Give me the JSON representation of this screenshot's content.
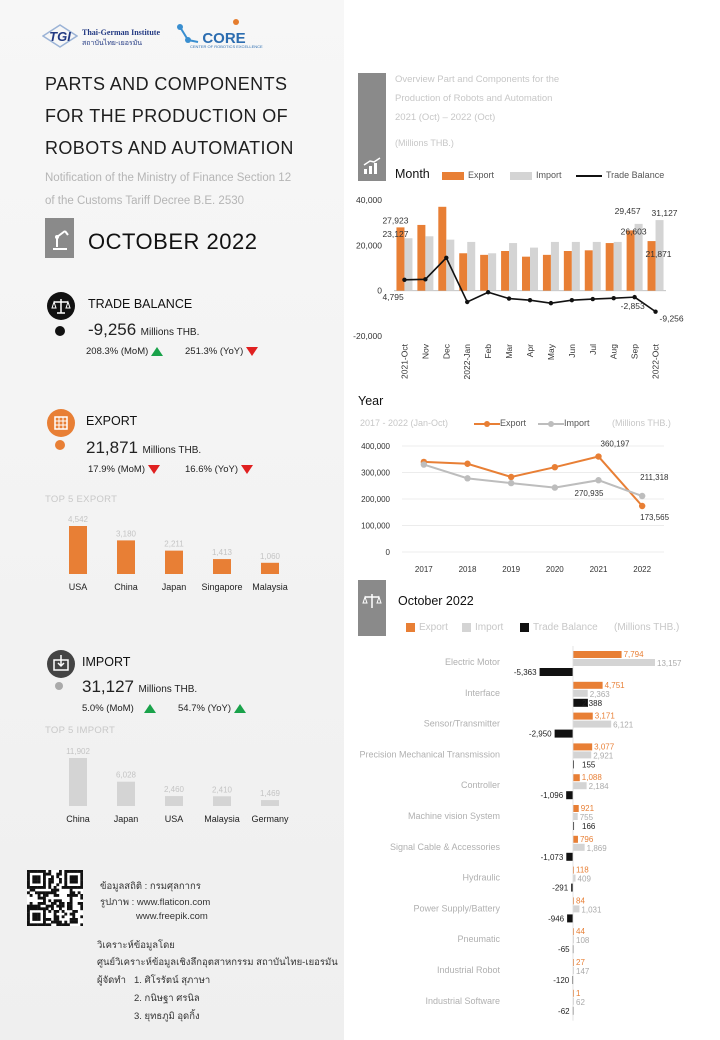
{
  "header": {
    "tgi_logo_text": "TGI",
    "tgi_name_en": "Thai-German Institute",
    "tgi_name_th": "สถาบันไทย-เยอรมัน",
    "core_logo_text": "CORE",
    "core_subtitle": "CENTER OF ROBOTICS EXCELLENCE"
  },
  "title": {
    "lines": [
      "PARTS AND COMPONENTS",
      "FOR THE PRODUCTION OF",
      "ROBOTS AND AUTOMATION"
    ],
    "subtitle_lines": [
      "Notification of the Ministry of Finance Section 12",
      "of the Customs Tariff Decree B.E. 2530"
    ],
    "period": "OCTOBER 2022"
  },
  "trade_balance": {
    "title": "TRADE BALANCE",
    "value": "-9,256",
    "unit": "Millions THB.",
    "mom": "208.3% (MoM)",
    "yoy": "251.3% (YoY)"
  },
  "export": {
    "title": "EXPORT",
    "value": "21,871",
    "unit": "Millions THB.",
    "mom": "17.9% (MoM)",
    "yoy": "16.6% (YoY)",
    "top5_label": "TOP 5 EXPORT",
    "top5": [
      {
        "country": "USA",
        "value": 4542,
        "label": "4,542"
      },
      {
        "country": "China",
        "value": 3180,
        "label": "3,180"
      },
      {
        "country": "Japan",
        "value": 2211,
        "label": "2,211"
      },
      {
        "country": "Singapore",
        "value": 1413,
        "label": "1,413"
      },
      {
        "country": "Malaysia",
        "value": 1060,
        "label": "1,060"
      }
    ]
  },
  "import": {
    "title": "IMPORT",
    "value": "31,127",
    "unit": "Millions THB.",
    "mom": "5.0% (MoM)",
    "yoy": "54.7% (YoY)",
    "top5_label": "TOP 5 IMPORT",
    "top5": [
      {
        "country": "China",
        "value": 11902,
        "label": "11,902"
      },
      {
        "country": "Japan",
        "value": 6028,
        "label": "6,028"
      },
      {
        "country": "USA",
        "value": 2460,
        "label": "2,460"
      },
      {
        "country": "Malaysia",
        "value": 2410,
        "label": "2,410"
      },
      {
        "country": "Germany",
        "value": 1469,
        "label": "1,469"
      }
    ]
  },
  "credits": {
    "source_label": "ข้อมูลสถิติ : กรมศุลกากร",
    "image_label": "รูปภาพ : www.flaticon.com",
    "image_label2": "www.freepik.com",
    "analysis_label": "วิเคราะห์ข้อมูลโดย",
    "analysis_org": "ศูนย์วิเคราะห์ข้อมูลเชิงลึกอุตสาหกรรม สถาบันไทย-เยอรมัน",
    "preparers_label": "ผู้จัดทำ",
    "preparers": [
      "1. ศิโรรัตน์ สุภาษา",
      "2. กนิษฐา ศรนิล",
      "3. ยุทธภูมิ อุดกิ้ง"
    ]
  },
  "overview": {
    "title_lines": [
      "Overview Part and Components for the",
      "Production of Robots and Automation",
      "2021 (Oct) – 2022 (Oct)"
    ],
    "unit": "(Millions THB.)"
  },
  "colors": {
    "export": "#e87f35",
    "import": "#d4d4d4",
    "balance": "#111111",
    "up": "#19a24a",
    "down": "#e02020"
  },
  "chart_data": [
    {
      "type": "bar",
      "title": "Month",
      "legend": [
        "Export",
        "Import",
        "Trade Balance"
      ],
      "categories": [
        "2021-Oct",
        "Nov",
        "Dec",
        "2022-Jan",
        "Feb",
        "Mar",
        "Apr",
        "May",
        "Jun",
        "Jul",
        "Aug",
        "Sep",
        "2022-Oct"
      ],
      "series": [
        {
          "name": "Export",
          "values": [
            27923,
            29000,
            37000,
            16500,
            15800,
            17500,
            15000,
            15800,
            17500,
            17800,
            21000,
            26603,
            21871
          ]
        },
        {
          "name": "Import",
          "values": [
            23127,
            24000,
            22500,
            21500,
            16500,
            21000,
            19000,
            21500,
            21500,
            21500,
            21500,
            29457,
            31127
          ]
        },
        {
          "name": "Trade Balance",
          "values": [
            4795,
            5000,
            14500,
            -5000,
            -700,
            -3500,
            -4200,
            -5500,
            -4200,
            -3700,
            -3300,
            -2853,
            -9256
          ]
        }
      ],
      "data_labels": {
        "Export": {
          "0": "27,923",
          "11": "26,603",
          "12": "21,871"
        },
        "Import": {
          "0": "23,127",
          "11": "29,457",
          "12": "31,127"
        },
        "Trade Balance": {
          "0": "4,795",
          "11": "-2,853",
          "12": "-9,256"
        }
      },
      "y_ticks": [
        "40,000",
        "20,000",
        "0",
        "-20,000"
      ],
      "ylim": [
        -20000,
        40000
      ],
      "grid": false
    },
    {
      "type": "line",
      "title": "Year",
      "subtitle": "2017 - 2022 (Jan-Oct)",
      "unit": "(Millions THB.)",
      "legend": [
        "Export",
        "Import"
      ],
      "x": [
        "2017",
        "2018",
        "2019",
        "2020",
        "2021",
        "2022"
      ],
      "series": [
        {
          "name": "Export",
          "values": [
            340000,
            333000,
            283000,
            320000,
            360197,
            173565
          ]
        },
        {
          "name": "Import",
          "values": [
            330000,
            278000,
            260000,
            243000,
            270935,
            211318
          ]
        }
      ],
      "data_labels": {
        "Export": {
          "4": "360,197",
          "5": "173,565"
        },
        "Import": {
          "4": "270,935",
          "5": "211,318"
        }
      },
      "y_ticks": [
        "400,000",
        "300,000",
        "200,000",
        "100,000",
        "0"
      ],
      "ylim": [
        0,
        400000
      ],
      "grid": true
    },
    {
      "type": "bar",
      "title": "October 2022",
      "unit": "(Millions THB.)",
      "legend": [
        "Export",
        "Import",
        "Trade Balance"
      ],
      "categories": [
        "Electric Motor",
        "Interface",
        "Sensor/Transmitter",
        "Precision Mechanical Transmission",
        "Controller",
        "Machine vision System",
        "Signal Cable & Accessories",
        "Hydraulic",
        "Power Supply/Battery",
        "Pneumatic",
        "Industrial Robot",
        "Industrial Software"
      ],
      "series": [
        {
          "name": "Export",
          "values": [
            7794,
            4751,
            3171,
            3077,
            1088,
            921,
            796,
            118,
            84,
            44,
            27,
            1
          ]
        },
        {
          "name": "Import",
          "values": [
            13157,
            2363,
            6121,
            2921,
            2184,
            755,
            1869,
            409,
            1031,
            108,
            147,
            62
          ]
        },
        {
          "name": "Trade Balance",
          "values": [
            -5363,
            2388,
            -2950,
            155,
            -1096,
            166,
            -1073,
            -291,
            -946,
            -65,
            -120,
            -62
          ]
        }
      ],
      "export_labels": [
        "7,794",
        "4,751",
        "3,171",
        "3,077",
        "1,088",
        "921",
        "796",
        "118",
        "84",
        "44",
        "27",
        "1"
      ],
      "import_labels": [
        "13,157",
        "2,363",
        "6,121",
        "2,921",
        "2,184",
        "755",
        "1,869",
        "409",
        "1,031",
        "108",
        "147",
        "62"
      ],
      "balance_labels": [
        "-5,363",
        "2,388",
        "-2,950",
        "155",
        "-1,096",
        "166",
        "-1,073",
        "-291",
        "-946",
        "-65",
        "-120",
        "-62"
      ],
      "grid": false
    }
  ]
}
